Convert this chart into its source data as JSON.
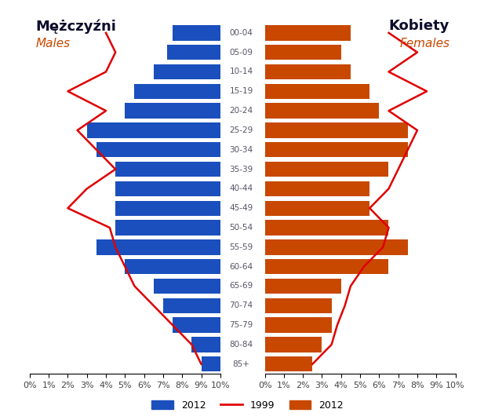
{
  "age_groups": [
    "85+",
    "80-84",
    "75-79",
    "70-74",
    "65-69",
    "60-64",
    "55-59",
    "50-54",
    "45-49",
    "40-44",
    "35-39",
    "30-34",
    "25-29",
    "20-24",
    "15-19",
    "10-14",
    "05-09",
    "00-04"
  ],
  "males_2012": [
    1.0,
    1.5,
    2.5,
    3.0,
    3.5,
    5.0,
    6.5,
    5.5,
    5.5,
    5.5,
    5.5,
    6.5,
    7.0,
    5.0,
    4.5,
    3.5,
    2.8,
    2.5
  ],
  "females_2012": [
    2.5,
    3.0,
    3.5,
    3.5,
    4.0,
    6.5,
    7.5,
    6.5,
    5.5,
    5.5,
    6.5,
    7.5,
    7.5,
    6.0,
    5.5,
    4.5,
    4.0,
    4.5
  ],
  "males_1999": [
    1.0,
    1.5,
    2.5,
    3.5,
    4.5,
    5.0,
    5.5,
    5.8,
    8.0,
    7.0,
    5.5,
    6.5,
    7.5,
    6.0,
    8.0,
    6.0,
    5.5,
    6.0
  ],
  "females_1999": [
    2.5,
    3.5,
    3.8,
    4.2,
    4.5,
    5.2,
    6.2,
    6.5,
    5.5,
    6.5,
    7.0,
    7.5,
    8.0,
    6.5,
    8.5,
    6.5,
    8.0,
    6.5
  ],
  "male_color": "#1a4fbd",
  "female_color": "#c84800",
  "line_color": "#e00000",
  "title_left_bold": "Mężczyźni",
  "title_left_italic": "Males",
  "title_right_bold": "Kobiety",
  "title_right_italic": "Females",
  "legend_label_blue": "2012",
  "legend_label_line": "1999",
  "legend_label_orange": "2012",
  "bar_height": 0.78,
  "xlim": 10.0,
  "male_xtick_labels": [
    "10%",
    "9%",
    "8%",
    "7%",
    "6%",
    "5%",
    "4%",
    "3%",
    "2%",
    "1%",
    "0%"
  ],
  "female_xtick_labels": [
    "0%",
    "1%",
    "2%",
    "3%",
    "4%",
    "5%",
    "6%",
    "7%",
    "8%",
    "9%",
    "10%"
  ]
}
